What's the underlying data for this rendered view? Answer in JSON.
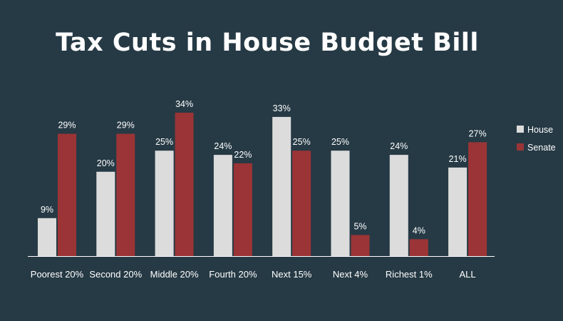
{
  "chart_data": {
    "type": "bar",
    "title": "Tax Cuts in House Budget Bill",
    "categories": [
      "Poorest 20%",
      "Second 20%",
      "Middle 20%",
      "Fourth 20%",
      "Next 15%",
      "Next 4%",
      "Richest 1%",
      "ALL"
    ],
    "series": [
      {
        "name": "House",
        "values": [
          9,
          20,
          25,
          24,
          33,
          25,
          24,
          21
        ],
        "labels": [
          "9%",
          "20%",
          "25%",
          "24%",
          "33%",
          "25%",
          "24%",
          "21%"
        ],
        "color": "#dcdcdc"
      },
      {
        "name": "Senate",
        "values": [
          29,
          29,
          34,
          22,
          25,
          5,
          4,
          27
        ],
        "labels": [
          "29%",
          "29%",
          "34%",
          "22%",
          "25%",
          "5%",
          "4%",
          "27%"
        ],
        "color": "#9b3436"
      }
    ],
    "xlabel": "",
    "ylabel": "",
    "ylim": [
      0,
      34
    ],
    "grid": false,
    "legend_position": "right"
  },
  "colors": {
    "background": "#263a45",
    "house": "#dcdcdc",
    "senate": "#9b3436",
    "text": "#ffffff"
  }
}
